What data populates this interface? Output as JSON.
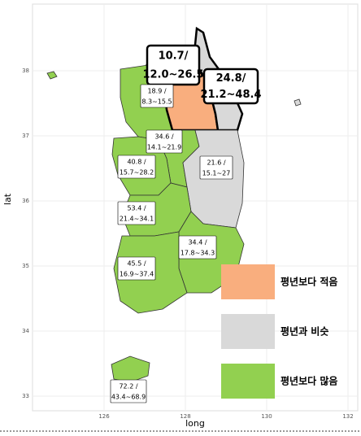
{
  "axes": {
    "xlabel": "long",
    "ylabel": "lat",
    "xlim": [
      124.24,
      132.24
    ],
    "ylim": [
      32.775,
      39.025
    ],
    "xticks": [
      126,
      128,
      130,
      132
    ],
    "yticks": [
      33,
      34,
      35,
      36,
      37,
      38
    ]
  },
  "legend": [
    {
      "label": "평년보다 적음",
      "color": "#f9ae7e"
    },
    {
      "label": "평년과 비슷",
      "color": "#d9d9d9"
    },
    {
      "label": "평년보다 많음",
      "color": "#92d050"
    }
  ],
  "labels": [
    {
      "value": "10.7/",
      "range": "12.0~26.5"
    },
    {
      "value": "24.8/",
      "range": "21.2~48.4"
    },
    {
      "value": "18.9 /",
      "range": "8.3~15.5"
    },
    {
      "value": "34.6 /",
      "range": "14.1~21.9"
    },
    {
      "value": "40.8 /",
      "range": "15.7~28.2"
    },
    {
      "value": "21.6 /",
      "range": "15.1~27"
    },
    {
      "value": "53.4 /",
      "range": "21.4~34.1"
    },
    {
      "value": "34.4 /",
      "range": "17.8~34.3"
    },
    {
      "value": "45.5 /",
      "range": "16.9~37.4"
    },
    {
      "value": "72.2 /",
      "range": "43.4~68.9"
    }
  ]
}
